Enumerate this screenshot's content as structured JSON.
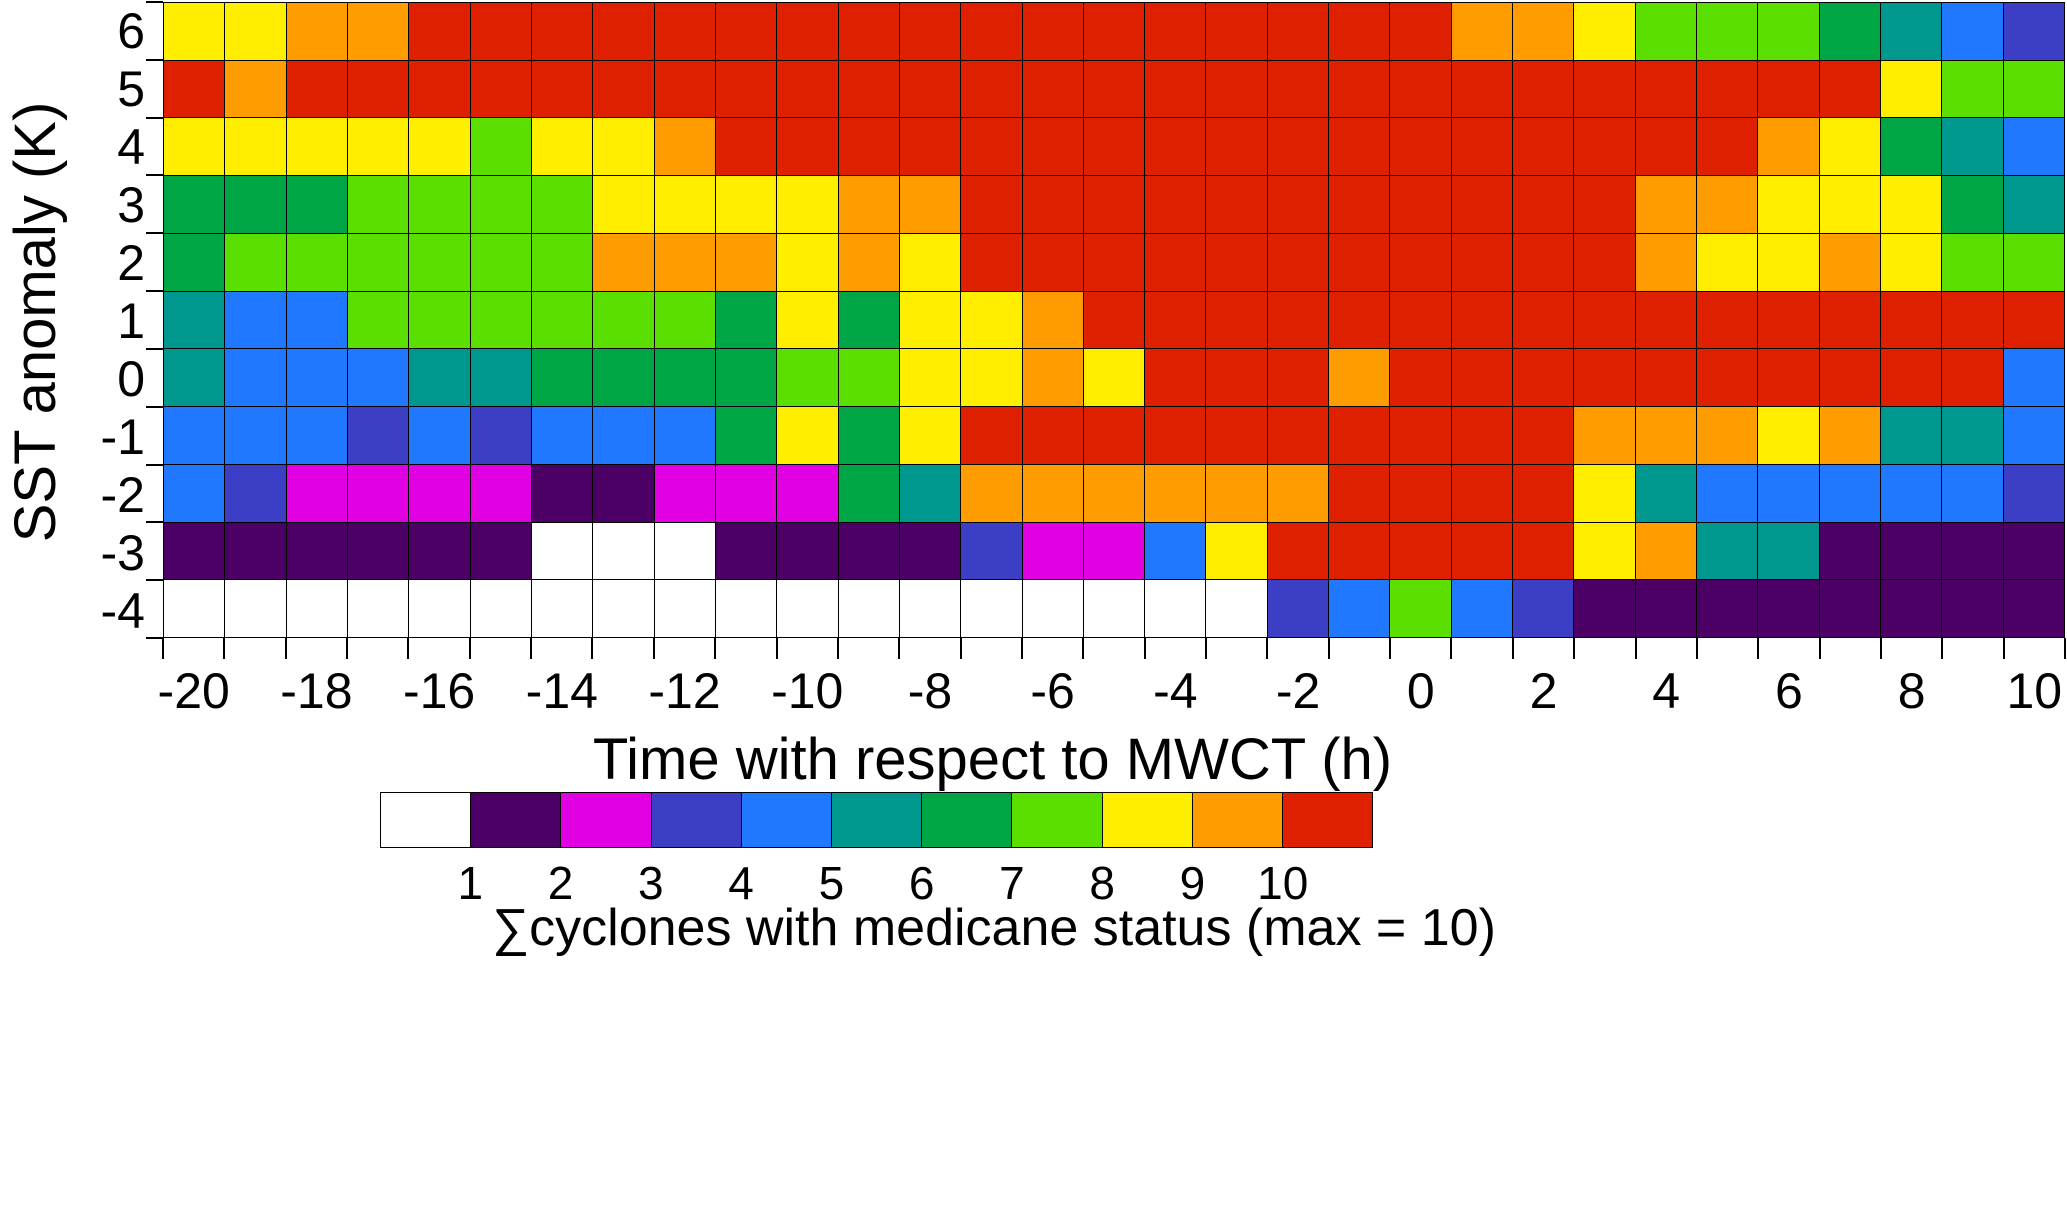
{
  "chart_data": {
    "type": "heatmap",
    "title": "",
    "xlabel": "Time with respect to MWCT (h)",
    "ylabel": "SST anomaly (K)",
    "x_min": -20,
    "x_max": 10,
    "x_step_per_cell": 1,
    "x_tick_labels": [
      "-20",
      "-18",
      "-16",
      "-14",
      "-12",
      "-10",
      "-8",
      "-6",
      "-4",
      "-2",
      "0",
      "2",
      "4",
      "6",
      "8",
      "10"
    ],
    "y_tick_labels": [
      "6",
      "5",
      "4",
      "3",
      "2",
      "1",
      "0",
      "-1",
      "-2",
      "-3",
      "-4"
    ],
    "grid": "black 1px cell borders",
    "legend_position": "bottom",
    "colorbar_caption": "∑cyclones with medicane status (max = 10)",
    "colorbar_tick_labels": [
      "1",
      "2",
      "3",
      "4",
      "5",
      "6",
      "7",
      "8",
      "9",
      "10"
    ],
    "value_meaning": "sum of cyclones with medicane status; 0 = white (no data)",
    "colors": [
      "#ffffff",
      "#4c0066",
      "#e100e1",
      "#3d3ec6",
      "#1f78ff",
      "#00988e",
      "#00a545",
      "#5adf00",
      "#ffee00",
      "#ff9d00",
      "#de2000"
    ],
    "rows_top_to_bottom_y": [
      6,
      5,
      4,
      3,
      2,
      1,
      0,
      -1,
      -2,
      -3,
      -4
    ],
    "values": [
      [
        8,
        8,
        9,
        9,
        10,
        10,
        10,
        10,
        10,
        10,
        10,
        10,
        10,
        10,
        10,
        10,
        10,
        10,
        10,
        10,
        10,
        9,
        9,
        8,
        7,
        7,
        7,
        6,
        5,
        4,
        3
      ],
      [
        10,
        9,
        10,
        10,
        10,
        10,
        10,
        10,
        10,
        10,
        10,
        10,
        10,
        10,
        10,
        10,
        10,
        10,
        10,
        10,
        10,
        10,
        10,
        10,
        10,
        10,
        10,
        10,
        8,
        7,
        7
      ],
      [
        8,
        8,
        8,
        8,
        8,
        7,
        8,
        8,
        9,
        10,
        10,
        10,
        10,
        10,
        10,
        10,
        10,
        10,
        10,
        10,
        10,
        10,
        10,
        10,
        10,
        10,
        9,
        8,
        6,
        5,
        4
      ],
      [
        6,
        6,
        6,
        7,
        7,
        7,
        7,
        8,
        8,
        8,
        8,
        9,
        9,
        10,
        10,
        10,
        10,
        10,
        10,
        10,
        10,
        10,
        10,
        10,
        9,
        9,
        8,
        8,
        8,
        6,
        5
      ],
      [
        6,
        7,
        7,
        7,
        7,
        7,
        7,
        9,
        9,
        9,
        8,
        9,
        8,
        10,
        10,
        10,
        10,
        10,
        10,
        10,
        10,
        10,
        10,
        10,
        9,
        8,
        8,
        9,
        8,
        7,
        7
      ],
      [
        5,
        4,
        4,
        7,
        7,
        7,
        7,
        7,
        7,
        6,
        8,
        6,
        8,
        8,
        9,
        10,
        10,
        10,
        10,
        10,
        10,
        10,
        10,
        10,
        10,
        10,
        10,
        10,
        10,
        10,
        10
      ],
      [
        5,
        4,
        4,
        4,
        5,
        5,
        6,
        6,
        6,
        6,
        7,
        7,
        8,
        8,
        9,
        8,
        10,
        10,
        10,
        9,
        10,
        10,
        10,
        10,
        10,
        10,
        10,
        10,
        10,
        10,
        4
      ],
      [
        4,
        4,
        4,
        3,
        4,
        3,
        4,
        4,
        4,
        6,
        8,
        6,
        8,
        10,
        10,
        10,
        10,
        10,
        10,
        10,
        10,
        10,
        10,
        9,
        9,
        9,
        8,
        9,
        5,
        5,
        4
      ],
      [
        4,
        3,
        2,
        2,
        2,
        2,
        1,
        1,
        2,
        2,
        2,
        6,
        5,
        9,
        9,
        9,
        9,
        9,
        9,
        10,
        10,
        10,
        10,
        8,
        5,
        4,
        4,
        4,
        4,
        4,
        3
      ],
      [
        1,
        1,
        1,
        1,
        1,
        1,
        0,
        0,
        0,
        1,
        1,
        1,
        1,
        3,
        2,
        2,
        4,
        8,
        10,
        10,
        10,
        10,
        10,
        8,
        9,
        5,
        5,
        1,
        1,
        1,
        1
      ],
      [
        0,
        0,
        0,
        0,
        0,
        0,
        0,
        0,
        0,
        0,
        0,
        0,
        0,
        0,
        0,
        0,
        0,
        0,
        3,
        4,
        7,
        4,
        3,
        1,
        1,
        1,
        1,
        1,
        1,
        1,
        1
      ]
    ]
  }
}
